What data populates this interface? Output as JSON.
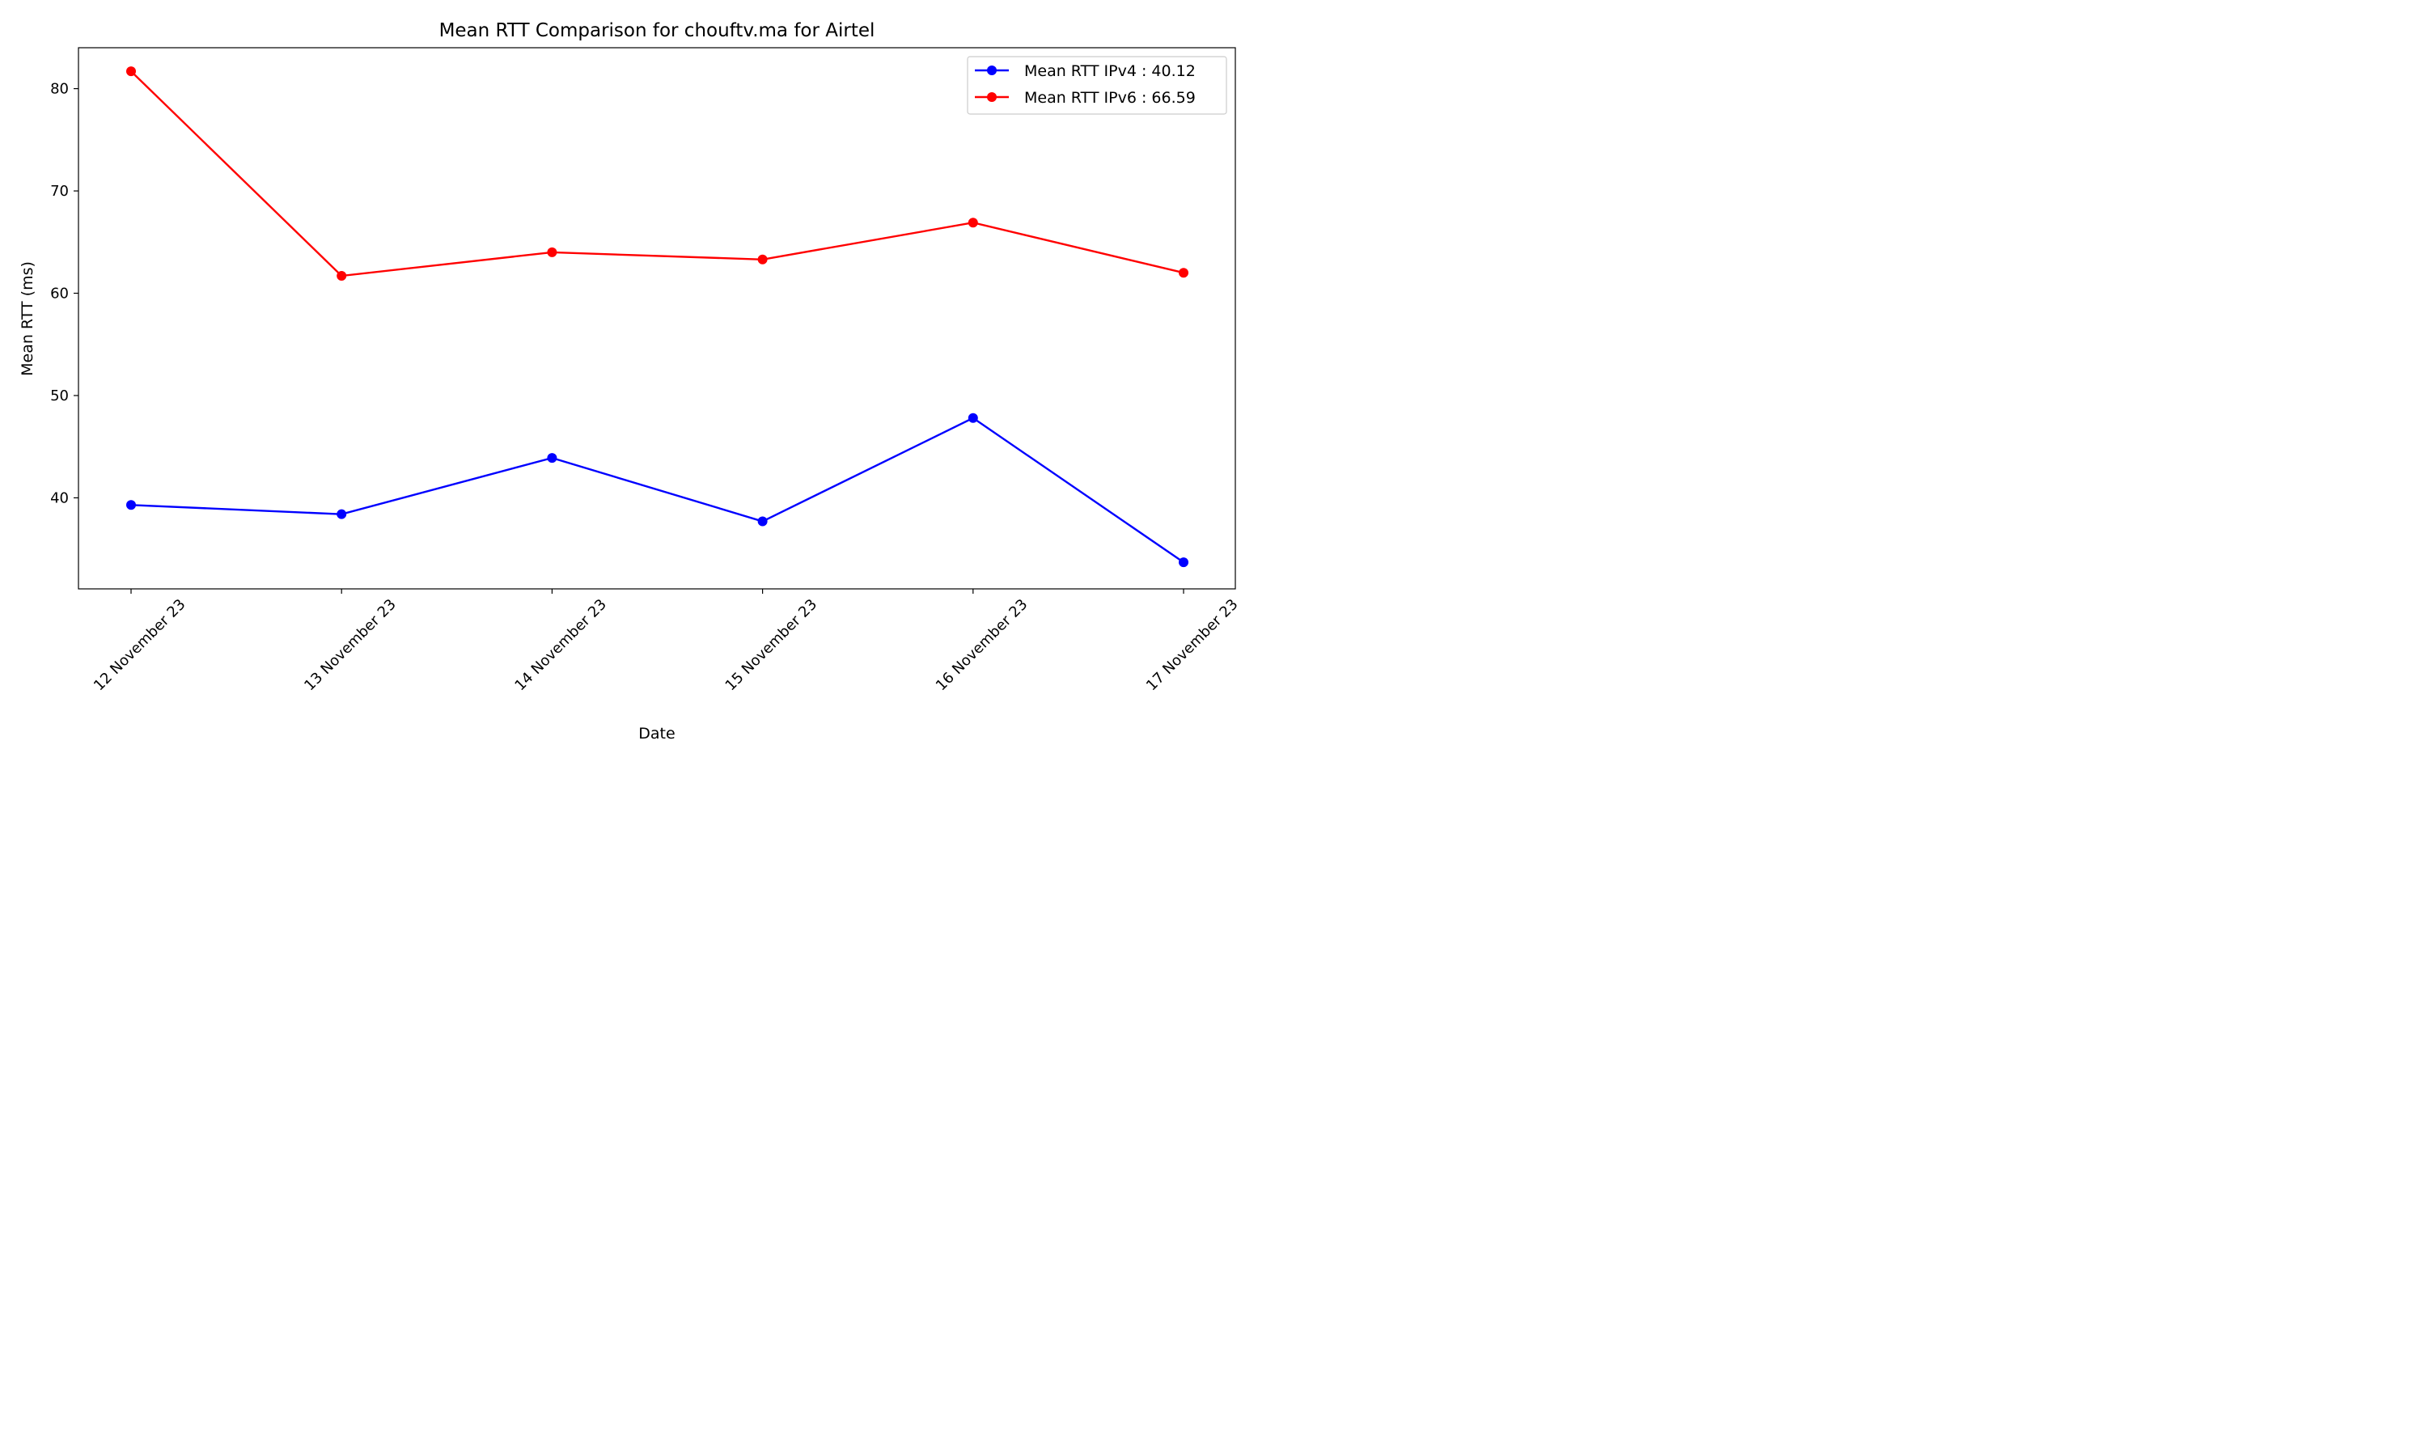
{
  "chart_data": {
    "type": "line",
    "title": "Mean RTT Comparison for chouftv.ma for Airtel",
    "xlabel": "Date",
    "ylabel": "Mean RTT (ms)",
    "categories": [
      "12 November 23",
      "13 November 23",
      "14 November 23",
      "15 November 23",
      "16 November 23",
      "17 November 23"
    ],
    "yticks": [
      40,
      50,
      60,
      70,
      80
    ],
    "ylim": [
      31.1,
      84.0
    ],
    "grid": false,
    "legend_position": "top-right",
    "series": [
      {
        "name": "Mean RTT IPv4 : 40.12",
        "color": "#0000ff",
        "marker": "circle",
        "values": [
          39.3,
          38.4,
          43.9,
          37.7,
          47.8,
          33.7
        ]
      },
      {
        "name": "Mean RTT IPv6 : 66.59",
        "color": "#ff0000",
        "marker": "circle",
        "values": [
          81.7,
          61.7,
          64.0,
          63.3,
          66.9,
          62.0
        ]
      }
    ]
  }
}
